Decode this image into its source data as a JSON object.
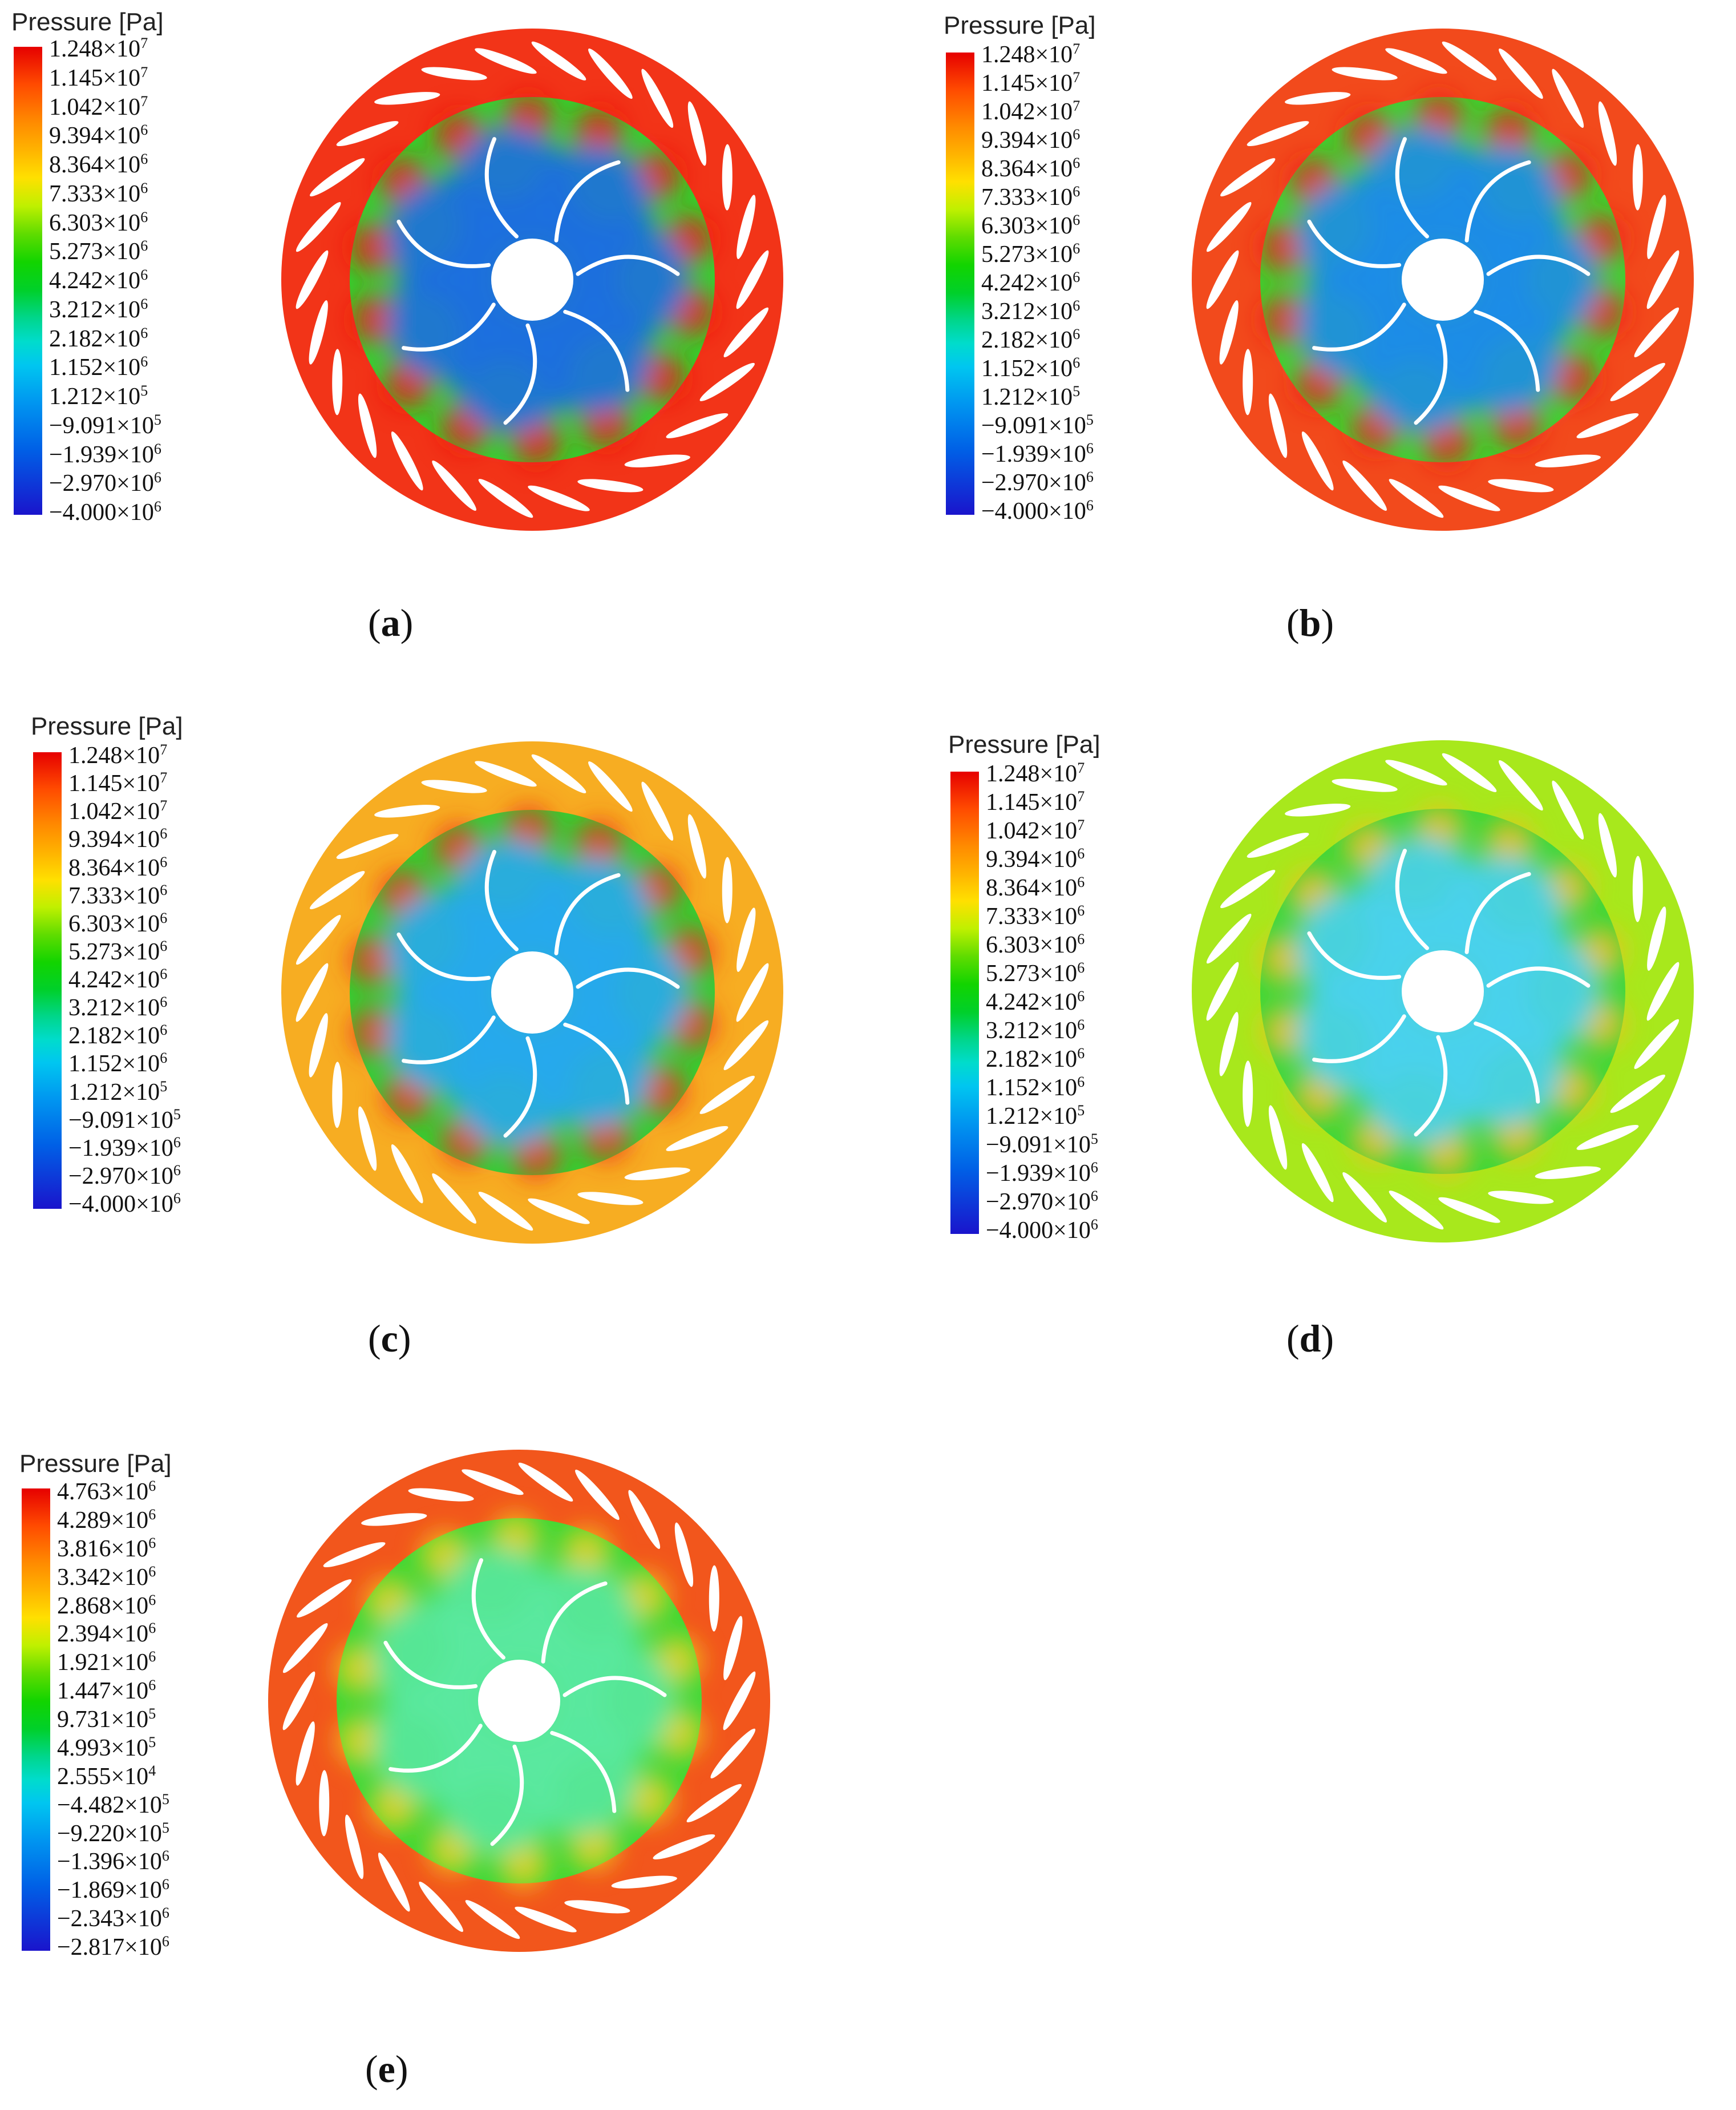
{
  "legend_title": "Pressure [Pa]",
  "panels": [
    {
      "label": "a",
      "legend": [
        "1.248×10^7",
        "1.145×10^7",
        "1.042×10^7",
        "9.394×10^6",
        "8.364×10^6",
        "7.333×10^6",
        "6.303×10^6",
        "5.273×10^6",
        "4.242×10^6",
        "3.212×10^6",
        "2.182×10^6",
        "1.152×10^6",
        "1.212×10^5",
        "−9.091×10^5",
        "−1.939×10^6",
        "−2.970×10^6",
        "−4.000×10^6"
      ],
      "colors": {
        "outer": "#f23418",
        "middle": "#2ed62e",
        "inner": "#1e6ee0",
        "hot": "#ee1a10"
      }
    },
    {
      "label": "b",
      "legend": [
        "1.248×10^7",
        "1.145×10^7",
        "1.042×10^7",
        "9.394×10^6",
        "8.364×10^6",
        "7.333×10^6",
        "6.303×10^6",
        "5.273×10^6",
        "4.242×10^6",
        "3.212×10^6",
        "2.182×10^6",
        "1.152×10^6",
        "1.212×10^5",
        "−9.091×10^5",
        "−1.939×10^6",
        "−2.970×10^6",
        "−4.000×10^6"
      ],
      "colors": {
        "outer": "#f24a1c",
        "middle": "#38d830",
        "inner": "#1e8ce8",
        "hot": "#ee2214"
      }
    },
    {
      "label": "c",
      "legend": [
        "1.248×10^7",
        "1.145×10^7",
        "1.042×10^7",
        "9.394×10^6",
        "8.364×10^6",
        "7.333×10^6",
        "6.303×10^6",
        "5.273×10^6",
        "4.242×10^6",
        "3.212×10^6",
        "2.182×10^6",
        "1.152×10^6",
        "1.212×10^5",
        "−9.091×10^5",
        "−1.939×10^6",
        "−2.970×10^6",
        "−4.000×10^6"
      ],
      "colors": {
        "outer": "#f7ad22",
        "middle": "#2ed234",
        "inner": "#28a8ee",
        "hot": "#ee3a18"
      }
    },
    {
      "label": "d",
      "legend": [
        "1.248×10^7",
        "1.145×10^7",
        "1.042×10^7",
        "9.394×10^6",
        "8.364×10^6",
        "7.333×10^6",
        "6.303×10^6",
        "5.273×10^6",
        "4.242×10^6",
        "3.212×10^6",
        "2.182×10^6",
        "1.152×10^6",
        "1.212×10^5",
        "−9.091×10^5",
        "−1.939×10^6",
        "−2.970×10^6",
        "−4.000×10^6"
      ],
      "colors": {
        "outer": "#a8e81c",
        "middle": "#3ad83c",
        "inner": "#4ad0ee",
        "hot": "#f0c020"
      }
    },
    {
      "label": "e",
      "legend": [
        "4.763×10^6",
        "4.289×10^6",
        "3.816×10^6",
        "3.342×10^6",
        "2.868×10^6",
        "2.394×10^6",
        "1.921×10^6",
        "1.447×10^6",
        "9.731×10^5",
        "4.993×10^5",
        "2.555×10^4",
        "−4.482×10^5",
        "−9.220×10^5",
        "−1.396×10^6",
        "−1.869×10^6",
        "−2.343×10^6",
        "−2.817×10^6"
      ],
      "colors": {
        "outer": "#f2561c",
        "middle": "#3cd838",
        "inner": "#5ae8a0",
        "hot": "#f0d020"
      }
    }
  ]
}
